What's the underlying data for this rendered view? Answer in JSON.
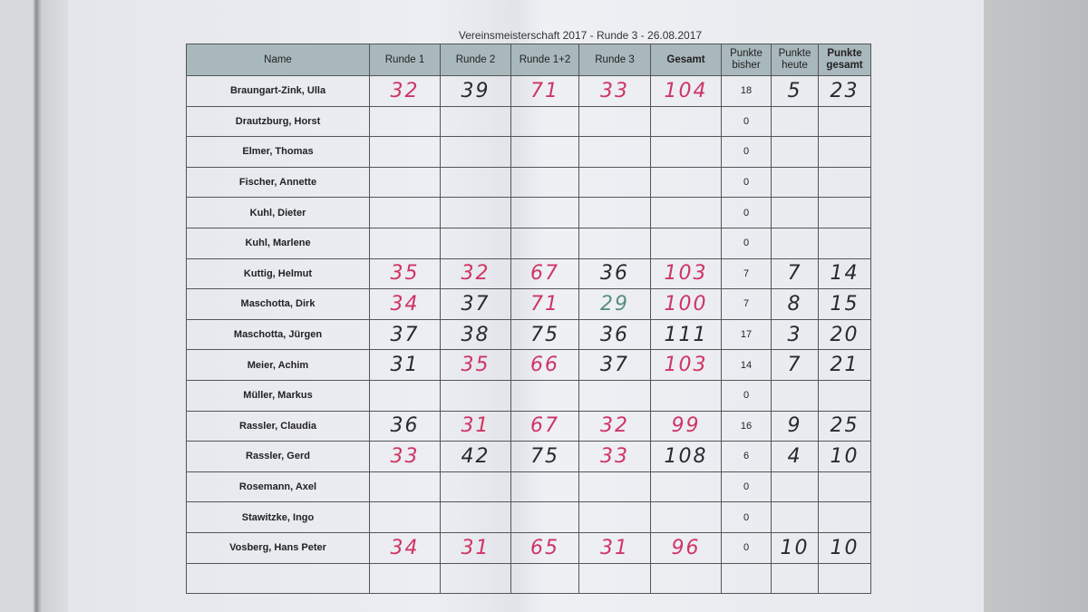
{
  "title": "Vereinsmeisterschaft 2017 - Runde 3 - 26.08.2017",
  "headers": [
    "Name",
    "Runde 1",
    "Runde 2",
    "Runde 1+2",
    "Runde 3",
    "Gesamt",
    "Punkte bisher",
    "Punkte heute",
    "Punkte gesamt"
  ],
  "colors": {
    "red": "#cf3564",
    "black": "#2a2a2e",
    "green": "#5a8f7a"
  },
  "rows": [
    {
      "name": "Braungart-Zink, Ulla",
      "r1": {
        "v": "32",
        "c": "red"
      },
      "r2": {
        "v": "39",
        "c": "black"
      },
      "r12": {
        "v": "71",
        "c": "red"
      },
      "r3": {
        "v": "33",
        "c": "red"
      },
      "ges": {
        "v": "104",
        "c": "red"
      },
      "bisher": "18",
      "heute": {
        "v": "5",
        "c": "black"
      },
      "pges": {
        "v": "23",
        "c": "black"
      }
    },
    {
      "name": "Drautzburg, Horst",
      "bisher": "0"
    },
    {
      "name": "Elmer, Thomas",
      "bisher": "0"
    },
    {
      "name": "Fischer, Annette",
      "bisher": "0"
    },
    {
      "name": "Kuhl, Dieter",
      "bisher": "0"
    },
    {
      "name": "Kuhl, Marlene",
      "bisher": "0"
    },
    {
      "name": "Kuttig, Helmut",
      "r1": {
        "v": "35",
        "c": "red"
      },
      "r2": {
        "v": "32",
        "c": "red"
      },
      "r12": {
        "v": "67",
        "c": "red"
      },
      "r3": {
        "v": "36",
        "c": "black"
      },
      "ges": {
        "v": "103",
        "c": "red"
      },
      "bisher": "7",
      "heute": {
        "v": "7",
        "c": "black"
      },
      "pges": {
        "v": "14",
        "c": "black"
      }
    },
    {
      "name": "Maschotta, Dirk",
      "r1": {
        "v": "34",
        "c": "red"
      },
      "r2": {
        "v": "37",
        "c": "black"
      },
      "r12": {
        "v": "71",
        "c": "red"
      },
      "r3": {
        "v": "29",
        "c": "green"
      },
      "ges": {
        "v": "100",
        "c": "red"
      },
      "bisher": "7",
      "heute": {
        "v": "8",
        "c": "black"
      },
      "pges": {
        "v": "15",
        "c": "black"
      }
    },
    {
      "name": "Maschotta, Jürgen",
      "r1": {
        "v": "37",
        "c": "black"
      },
      "r2": {
        "v": "38",
        "c": "black"
      },
      "r12": {
        "v": "75",
        "c": "black"
      },
      "r3": {
        "v": "36",
        "c": "black"
      },
      "ges": {
        "v": "111",
        "c": "black"
      },
      "bisher": "17",
      "heute": {
        "v": "3",
        "c": "black"
      },
      "pges": {
        "v": "20",
        "c": "black"
      }
    },
    {
      "name": "Meier, Achim",
      "r1": {
        "v": "31",
        "c": "black"
      },
      "r2": {
        "v": "35",
        "c": "red"
      },
      "r12": {
        "v": "66",
        "c": "red"
      },
      "r3": {
        "v": "37",
        "c": "black"
      },
      "ges": {
        "v": "103",
        "c": "red"
      },
      "bisher": "14",
      "heute": {
        "v": "7",
        "c": "black"
      },
      "pges": {
        "v": "21",
        "c": "black"
      }
    },
    {
      "name": "Müller, Markus",
      "bisher": "0"
    },
    {
      "name": "Rassler, Claudia",
      "r1": {
        "v": "36",
        "c": "black"
      },
      "r2": {
        "v": "31",
        "c": "red"
      },
      "r12": {
        "v": "67",
        "c": "red"
      },
      "r3": {
        "v": "32",
        "c": "red"
      },
      "ges": {
        "v": "99",
        "c": "red"
      },
      "bisher": "16",
      "heute": {
        "v": "9",
        "c": "black"
      },
      "pges": {
        "v": "25",
        "c": "black"
      }
    },
    {
      "name": "Rassler, Gerd",
      "r1": {
        "v": "33",
        "c": "red"
      },
      "r2": {
        "v": "42",
        "c": "black"
      },
      "r12": {
        "v": "75",
        "c": "black"
      },
      "r3": {
        "v": "33",
        "c": "red"
      },
      "ges": {
        "v": "108",
        "c": "black"
      },
      "bisher": "6",
      "heute": {
        "v": "4",
        "c": "black"
      },
      "pges": {
        "v": "10",
        "c": "black"
      }
    },
    {
      "name": "Rosemann, Axel",
      "bisher": "0"
    },
    {
      "name": "Stawitzke, Ingo",
      "bisher": "0"
    },
    {
      "name": "Vosberg, Hans Peter",
      "r1": {
        "v": "34",
        "c": "red"
      },
      "r2": {
        "v": "31",
        "c": "red"
      },
      "r12": {
        "v": "65",
        "c": "red"
      },
      "r3": {
        "v": "31",
        "c": "red"
      },
      "ges": {
        "v": "96",
        "c": "red"
      },
      "bisher": "0",
      "heute": {
        "v": "10",
        "c": "black"
      },
      "pges": {
        "v": "10",
        "c": "black"
      }
    },
    {
      "name": ""
    }
  ]
}
